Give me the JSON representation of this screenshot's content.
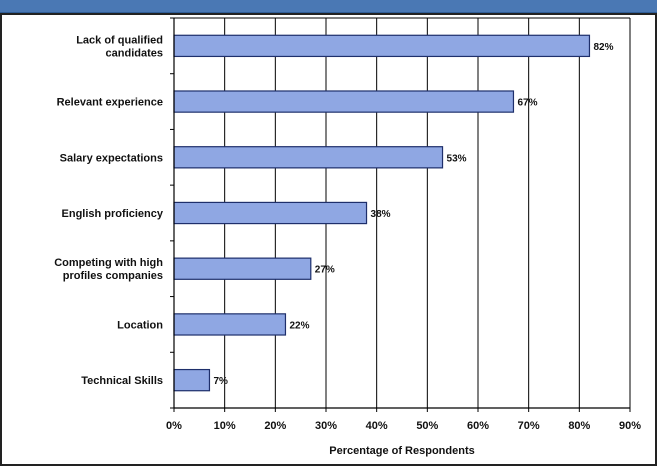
{
  "chart_data": {
    "type": "bar",
    "orientation": "horizontal",
    "categories": [
      [
        "Lack of qualified",
        "candidates"
      ],
      [
        "Relevant experience"
      ],
      [
        "Salary expectations"
      ],
      [
        "English proficiency"
      ],
      [
        "Competing with high",
        "profiles companies"
      ],
      [
        "Location"
      ],
      [
        "Technical Skills"
      ]
    ],
    "values": [
      82,
      67,
      53,
      38,
      27,
      22,
      7
    ],
    "value_labels": [
      "82%",
      "67%",
      "53%",
      "38%",
      "27%",
      "22%",
      "7%"
    ],
    "x_ticks": [
      "0%",
      "10%",
      "20%",
      "30%",
      "40%",
      "50%",
      "60%",
      "70%",
      "80%",
      "90%"
    ],
    "xlim": [
      0,
      90
    ],
    "xlabel": "Percentage of Respondents",
    "grid": "vertical",
    "colors": {
      "bar_fill": "#8fa7e3",
      "bar_stroke": "#1e2f6b",
      "grid": "#000000",
      "frame": "#222222",
      "header": "#4a78b4"
    }
  }
}
